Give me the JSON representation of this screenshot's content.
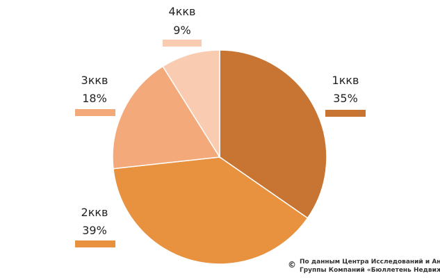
{
  "chart_data": {
    "type": "pie",
    "categories": [
      "1ккв",
      "2ккв",
      "3ккв",
      "4ккв"
    ],
    "values": [
      35,
      39,
      18,
      9
    ],
    "value_labels": [
      "35%",
      "39%",
      "18%",
      "9%"
    ],
    "colors": [
      "#c87533",
      "#e8913f",
      "#f4a97a",
      "#f9cbb1"
    ],
    "start_angle_deg": 0,
    "direction": "clockwise",
    "legend": "labels-beside-slices"
  },
  "source": {
    "symbol": "©",
    "line1": "По данным Центра Исследований и Аналитики",
    "line2": "Группы Компаний «Бюллетень Недвижимости»"
  }
}
